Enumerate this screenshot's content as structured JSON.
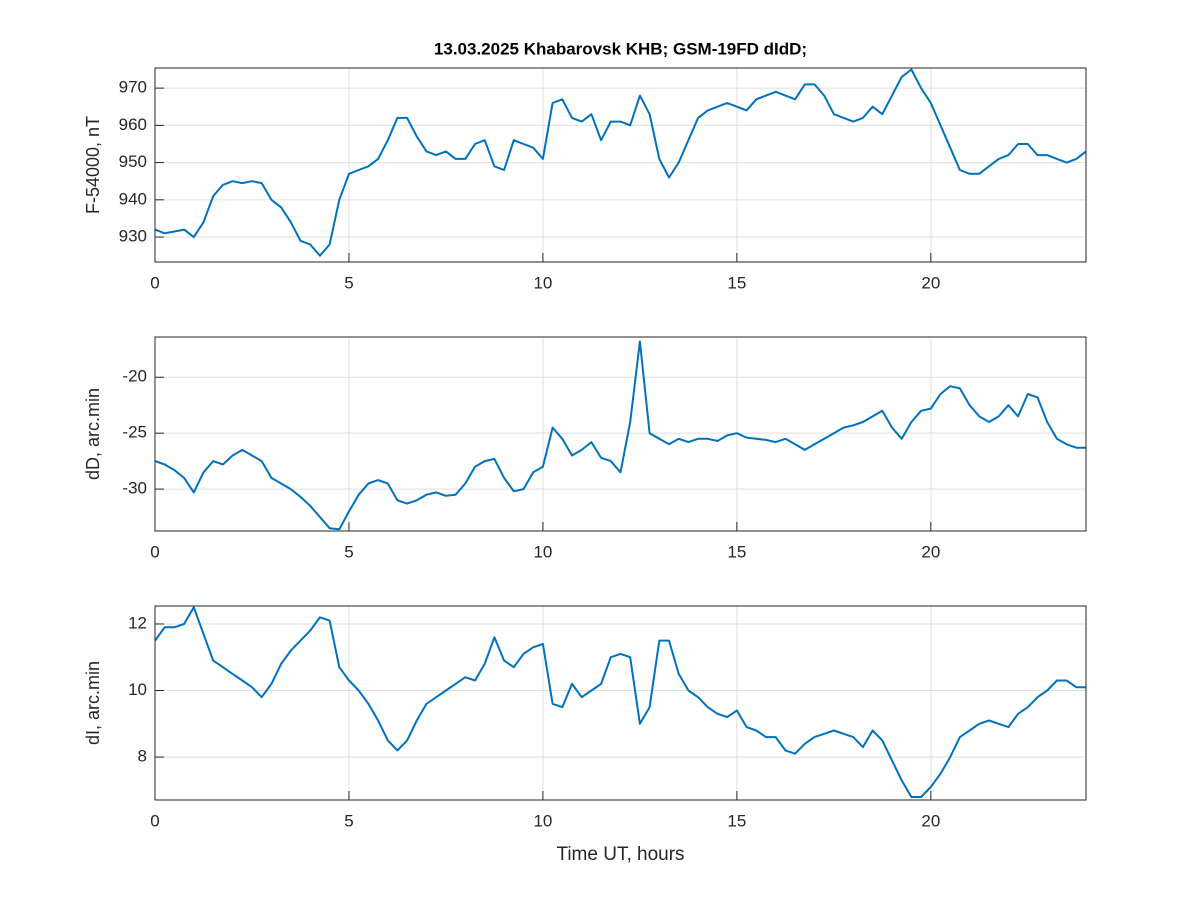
{
  "chart_data": [
    {
      "type": "line",
      "title": "13.03.2025  Khabarovsk KHB; GSM-19FD dIdD;",
      "ylabel": "F-54000, nT",
      "x": [
        0,
        0.25,
        0.5,
        0.75,
        1,
        1.25,
        1.5,
        1.75,
        2,
        2.25,
        2.5,
        2.75,
        3,
        3.25,
        3.5,
        3.75,
        4,
        4.25,
        4.5,
        4.75,
        5,
        5.25,
        5.5,
        5.75,
        6,
        6.25,
        6.5,
        6.75,
        7,
        7.25,
        7.5,
        7.75,
        8,
        8.25,
        8.5,
        8.75,
        9,
        9.25,
        9.5,
        9.75,
        10,
        10.25,
        10.5,
        10.75,
        11,
        11.25,
        11.5,
        11.75,
        12,
        12.25,
        12.5,
        12.75,
        13,
        13.25,
        13.5,
        13.75,
        14,
        14.25,
        14.5,
        14.75,
        15,
        15.25,
        15.5,
        15.75,
        16,
        16.25,
        16.5,
        16.75,
        17,
        17.25,
        17.5,
        17.75,
        18,
        18.25,
        18.5,
        18.75,
        19,
        19.25,
        19.5,
        19.75,
        20,
        20.25,
        20.5,
        20.75,
        21,
        21.25,
        21.5,
        21.75,
        22,
        22.25,
        22.5,
        22.75,
        23,
        23.25,
        23.5,
        23.75,
        24
      ],
      "values": [
        932,
        931,
        931.5,
        932,
        930,
        934,
        941,
        944,
        945,
        944.5,
        945,
        944.5,
        940,
        938,
        934,
        929,
        928,
        925,
        928,
        940,
        947,
        948,
        949,
        951,
        956,
        962,
        962,
        957,
        953,
        952,
        953,
        951,
        951,
        955,
        956,
        949,
        948,
        956,
        955,
        954,
        951,
        966,
        967,
        962,
        961,
        963,
        956,
        961,
        961,
        960,
        968,
        963,
        951,
        946,
        950,
        956,
        962,
        964,
        965,
        966,
        965,
        964,
        967,
        968,
        969,
        968,
        967,
        971,
        971,
        968,
        963,
        962,
        961,
        962,
        965,
        963,
        968,
        973,
        975,
        970,
        966,
        960,
        954,
        948,
        947,
        947,
        949,
        951,
        952,
        955,
        955,
        952,
        952,
        951,
        950,
        951,
        953
      ],
      "color": "#0072bd",
      "xlim": [
        0,
        24
      ],
      "xticks": [
        0,
        5,
        10,
        15,
        20
      ],
      "ylim": [
        923.3,
        975.4
      ],
      "yticks": [
        930,
        940,
        950,
        960,
        970
      ],
      "grid": true
    },
    {
      "type": "line",
      "ylabel": "dD, arc.min",
      "x": [
        0,
        0.25,
        0.5,
        0.75,
        1,
        1.25,
        1.5,
        1.75,
        2,
        2.25,
        2.5,
        2.75,
        3,
        3.25,
        3.5,
        3.75,
        4,
        4.25,
        4.5,
        4.75,
        5,
        5.25,
        5.5,
        5.75,
        6,
        6.25,
        6.5,
        6.75,
        7,
        7.25,
        7.5,
        7.75,
        8,
        8.25,
        8.5,
        8.75,
        9,
        9.25,
        9.5,
        9.75,
        10,
        10.25,
        10.5,
        10.75,
        11,
        11.25,
        11.5,
        11.75,
        12,
        12.25,
        12.5,
        12.75,
        13,
        13.25,
        13.5,
        13.75,
        14,
        14.25,
        14.5,
        14.75,
        15,
        15.25,
        15.5,
        15.75,
        16,
        16.25,
        16.5,
        16.75,
        17,
        17.25,
        17.5,
        17.75,
        18,
        18.25,
        18.5,
        18.75,
        19,
        19.25,
        19.5,
        19.75,
        20,
        20.25,
        20.5,
        20.75,
        21,
        21.25,
        21.5,
        21.75,
        22,
        22.25,
        22.5,
        22.75,
        23,
        23.25,
        23.5,
        23.75,
        24
      ],
      "values": [
        -27.5,
        -27.8,
        -28.3,
        -29,
        -30.3,
        -28.5,
        -27.5,
        -27.8,
        -27,
        -26.5,
        -27,
        -27.5,
        -29,
        -29.5,
        -30,
        -30.7,
        -31.5,
        -32.5,
        -33.5,
        -33.6,
        -32,
        -30.5,
        -29.5,
        -29.2,
        -29.5,
        -31,
        -31.3,
        -31,
        -30.5,
        -30.3,
        -30.6,
        -30.5,
        -29.5,
        -28,
        -27.5,
        -27.3,
        -29,
        -30.2,
        -30,
        -28.5,
        -28,
        -24.5,
        -25.5,
        -27,
        -26.5,
        -25.8,
        -27.2,
        -27.5,
        -28.5,
        -24,
        -16.8,
        -25,
        -25.5,
        -26,
        -25.5,
        -25.8,
        -25.5,
        -25.5,
        -25.7,
        -25.2,
        -25,
        -25.4,
        -25.5,
        -25.6,
        -25.8,
        -25.5,
        -26,
        -26.5,
        -26,
        -25.5,
        -25,
        -24.5,
        -24.3,
        -24,
        -23.5,
        -23,
        -24.5,
        -25.5,
        -24,
        -23,
        -22.8,
        -21.5,
        -20.8,
        -21,
        -22.5,
        -23.5,
        -24,
        -23.5,
        -22.5,
        -23.5,
        -21.5,
        -21.8,
        -24,
        -25.5,
        -26,
        -26.3,
        -26.3
      ],
      "color": "#0072bd",
      "xlim": [
        0,
        24
      ],
      "xticks": [
        0,
        5,
        10,
        15,
        20
      ],
      "ylim": [
        -33.75,
        -16.4
      ],
      "yticks": [
        -30,
        -25,
        -20
      ],
      "grid": true
    },
    {
      "type": "line",
      "ylabel": "dI, arc.min",
      "xlabel": "Time UT, hours",
      "x": [
        0,
        0.25,
        0.5,
        0.75,
        1,
        1.25,
        1.5,
        1.75,
        2,
        2.25,
        2.5,
        2.75,
        3,
        3.25,
        3.5,
        3.75,
        4,
        4.25,
        4.5,
        4.75,
        5,
        5.25,
        5.5,
        5.75,
        6,
        6.25,
        6.5,
        6.75,
        7,
        7.25,
        7.5,
        7.75,
        8,
        8.25,
        8.5,
        8.75,
        9,
        9.25,
        9.5,
        9.75,
        10,
        10.25,
        10.5,
        10.75,
        11,
        11.25,
        11.5,
        11.75,
        12,
        12.25,
        12.5,
        12.75,
        13,
        13.25,
        13.5,
        13.75,
        14,
        14.25,
        14.5,
        14.75,
        15,
        15.25,
        15.5,
        15.75,
        16,
        16.25,
        16.5,
        16.75,
        17,
        17.25,
        17.5,
        17.75,
        18,
        18.25,
        18.5,
        18.75,
        19,
        19.25,
        19.5,
        19.75,
        20,
        20.25,
        20.5,
        20.75,
        21,
        21.25,
        21.5,
        21.75,
        22,
        22.25,
        22.5,
        22.75,
        23,
        23.25,
        23.5,
        23.75,
        24
      ],
      "values": [
        11.5,
        11.9,
        11.9,
        12.0,
        12.5,
        11.7,
        10.9,
        10.7,
        10.5,
        10.3,
        10.1,
        9.8,
        10.2,
        10.8,
        11.2,
        11.5,
        11.8,
        12.2,
        12.1,
        10.7,
        10.3,
        10,
        9.6,
        9.1,
        8.5,
        8.2,
        8.5,
        9.1,
        9.6,
        9.8,
        10,
        10.2,
        10.4,
        10.3,
        10.8,
        11.6,
        10.9,
        10.7,
        11.1,
        11.3,
        11.4,
        9.6,
        9.5,
        10.2,
        9.8,
        10.0,
        10.2,
        11.0,
        11.1,
        11.0,
        9.0,
        9.5,
        11.5,
        11.5,
        10.5,
        10.0,
        9.8,
        9.5,
        9.3,
        9.2,
        9.4,
        8.9,
        8.8,
        8.6,
        8.6,
        8.2,
        8.1,
        8.4,
        8.6,
        8.7,
        8.8,
        8.7,
        8.6,
        8.3,
        8.8,
        8.5,
        7.9,
        7.3,
        6.8,
        6.8,
        7.1,
        7.5,
        8.0,
        8.6,
        8.8,
        9.0,
        9.1,
        9.0,
        8.9,
        9.3,
        9.5,
        9.8,
        10.0,
        10.3,
        10.3,
        10.1,
        10.1
      ],
      "color": "#0072bd",
      "xlim": [
        0,
        24
      ],
      "xticks": [
        0,
        5,
        10,
        15,
        20
      ],
      "ylim": [
        6.71,
        12.54
      ],
      "yticks": [
        8,
        10,
        12
      ],
      "grid": true
    }
  ]
}
